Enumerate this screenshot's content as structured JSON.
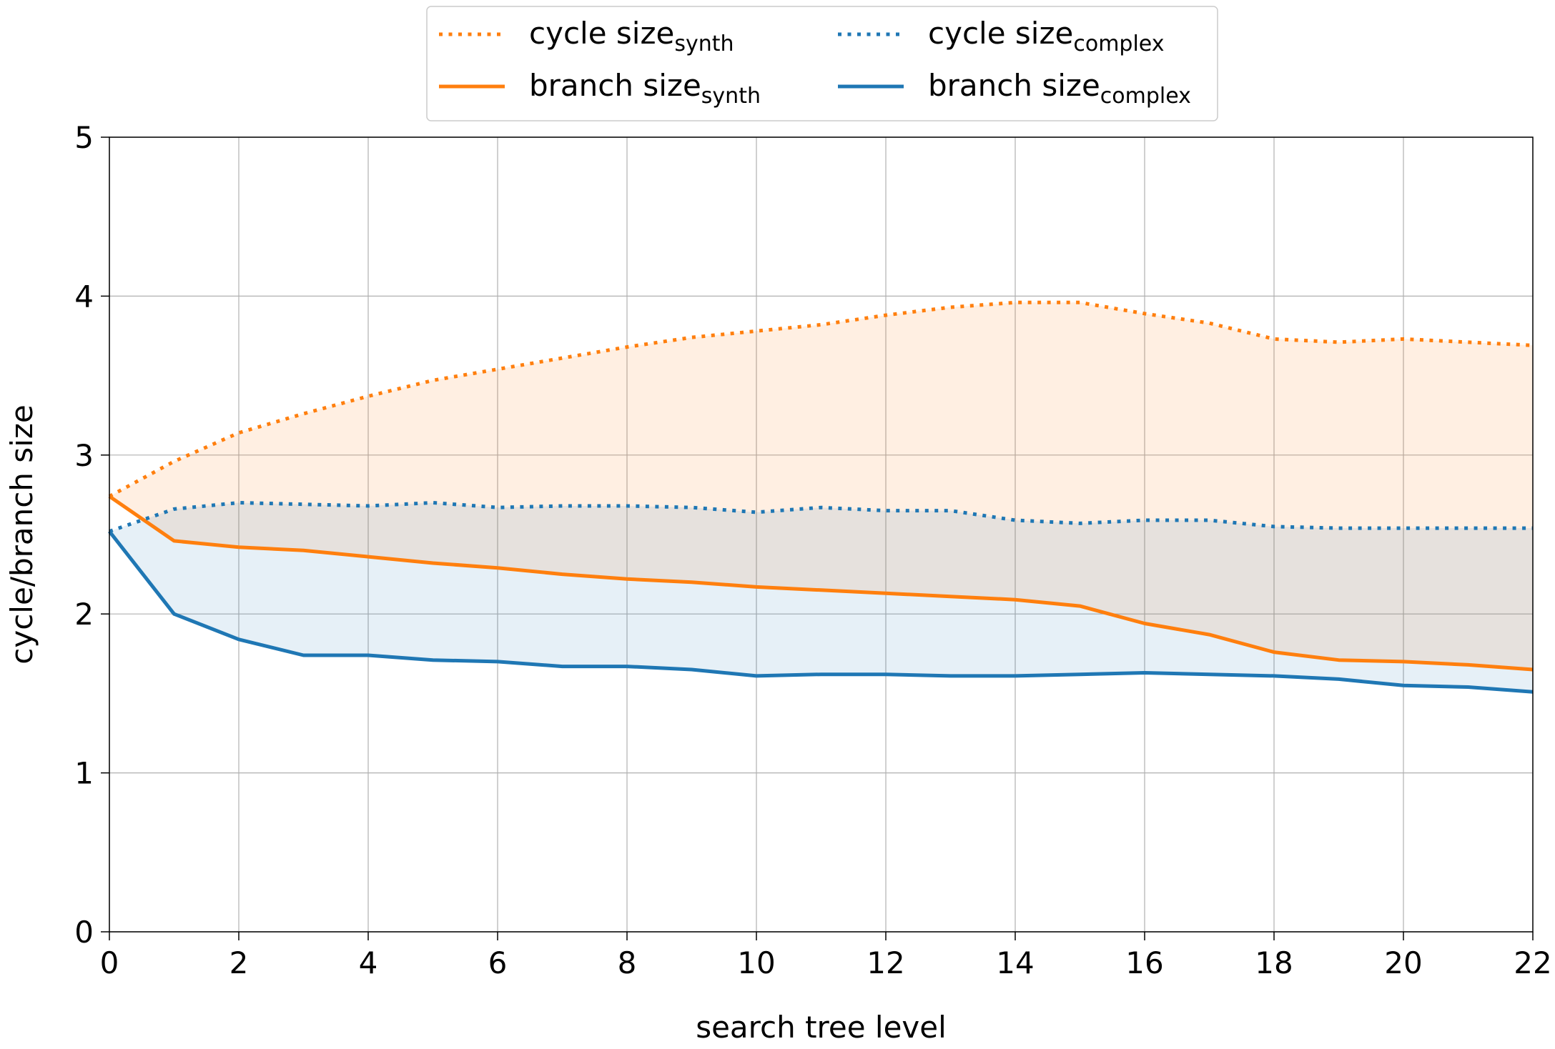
{
  "chart_data": {
    "type": "line",
    "title": "",
    "xlabel": "search tree level",
    "ylabel": "cycle/branch size",
    "xlim": [
      0,
      22
    ],
    "ylim": [
      0,
      5
    ],
    "xticks": [
      0,
      2,
      4,
      6,
      8,
      10,
      12,
      14,
      16,
      18,
      20,
      22
    ],
    "yticks": [
      0,
      1,
      2,
      3,
      4,
      5
    ],
    "grid": true,
    "legend_position": "top-center",
    "x": [
      0,
      1,
      2,
      3,
      4,
      5,
      6,
      7,
      8,
      9,
      10,
      11,
      12,
      13,
      14,
      15,
      16,
      17,
      18,
      19,
      20,
      21,
      22
    ],
    "series": [
      {
        "name": "cycle size",
        "subscript": "synth",
        "color": "#ff7f0e",
        "style": "dotted",
        "values": [
          2.74,
          2.96,
          3.14,
          3.26,
          3.37,
          3.47,
          3.54,
          3.61,
          3.68,
          3.74,
          3.78,
          3.82,
          3.88,
          3.93,
          3.96,
          3.96,
          3.89,
          3.83,
          3.73,
          3.71,
          3.73,
          3.71,
          3.69
        ]
      },
      {
        "name": "branch size",
        "subscript": "synth",
        "color": "#ff7f0e",
        "style": "solid",
        "values": [
          2.74,
          2.46,
          2.42,
          2.4,
          2.36,
          2.32,
          2.29,
          2.25,
          2.22,
          2.2,
          2.17,
          2.15,
          2.13,
          2.11,
          2.09,
          2.05,
          1.94,
          1.87,
          1.76,
          1.71,
          1.7,
          1.68,
          1.65
        ]
      },
      {
        "name": "cycle size",
        "subscript": "complex",
        "color": "#1f77b4",
        "style": "dotted",
        "values": [
          2.52,
          2.66,
          2.7,
          2.69,
          2.68,
          2.7,
          2.67,
          2.68,
          2.68,
          2.67,
          2.64,
          2.67,
          2.65,
          2.65,
          2.59,
          2.57,
          2.59,
          2.59,
          2.55,
          2.54,
          2.54,
          2.54,
          2.54
        ]
      },
      {
        "name": "branch size",
        "subscript": "complex",
        "color": "#1f77b4",
        "style": "solid",
        "values": [
          2.52,
          2.0,
          1.84,
          1.74,
          1.74,
          1.71,
          1.7,
          1.67,
          1.67,
          1.65,
          1.61,
          1.62,
          1.62,
          1.61,
          1.61,
          1.62,
          1.63,
          1.62,
          1.61,
          1.59,
          1.55,
          1.54,
          1.51
        ]
      }
    ],
    "fills": [
      {
        "between": [
          "cycle size synth",
          "branch size synth"
        ],
        "color": "#ff7f0e",
        "opacity": 0.12
      },
      {
        "between": [
          "cycle size complex",
          "branch size complex"
        ],
        "color": "#1f77b4",
        "opacity": 0.11
      }
    ]
  }
}
